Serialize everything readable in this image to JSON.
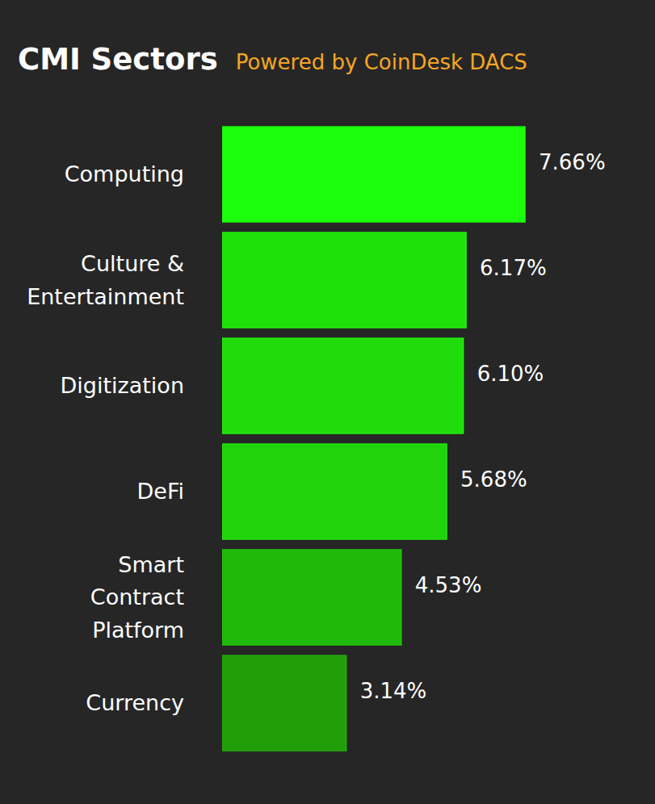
{
  "chart_data": {
    "type": "bar",
    "title": "CMI Sectors",
    "subtitle": "Powered by CoinDesk DACS",
    "orientation": "horizontal",
    "categories": [
      "Computing",
      "Culture & Entertainment",
      "Digitization",
      "DeFi",
      "Smart Contract Platform",
      "Currency"
    ],
    "values": [
      7.66,
      6.17,
      6.1,
      5.68,
      4.53,
      3.14
    ],
    "value_labels": [
      "7.66%",
      "6.17%",
      "6.10%",
      "5.68%",
      "4.53%",
      "3.14%"
    ],
    "colors": [
      "#1cff0c",
      "#20e00b",
      "#20dc0b",
      "#20d30b",
      "#21b80b",
      "#219e09"
    ],
    "data_labels": true,
    "tick_labels": "y"
  }
}
